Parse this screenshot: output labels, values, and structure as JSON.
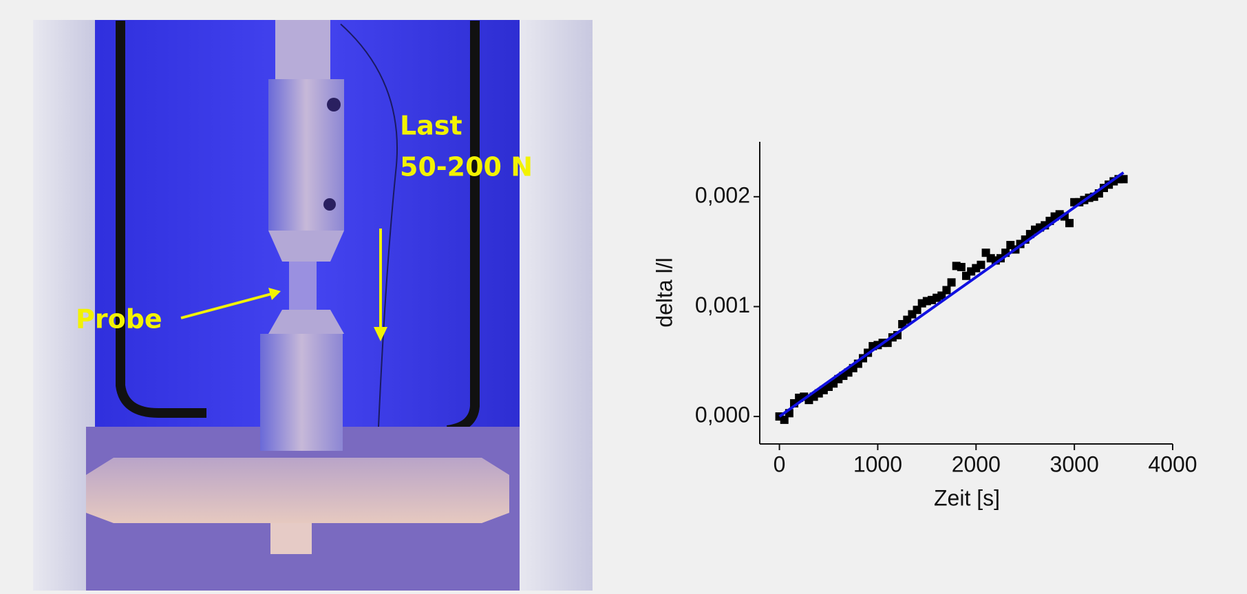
{
  "photo": {
    "labels": [
      "Last",
      "50-200 N",
      "Probe"
    ]
  },
  "chart_data": {
    "type": "scatter",
    "xlabel": "Zeit [s]",
    "ylabel": "delta l/l",
    "xlim": [
      -200,
      4000
    ],
    "xticks": [
      0,
      1000,
      2000,
      3000,
      4000
    ],
    "ylim": [
      -0.00025,
      0.0025
    ],
    "yticks": [
      {
        "value": 0,
        "label": "0,000"
      },
      {
        "value": 0.001,
        "label": "0,001"
      },
      {
        "value": 0.002,
        "label": "0,002"
      }
    ],
    "series": [
      {
        "type": "scatter",
        "color": "#000000",
        "x": [
          0,
          50,
          100,
          150,
          200,
          250,
          300,
          350,
          400,
          450,
          500,
          550,
          600,
          650,
          700,
          750,
          800,
          850,
          900,
          950,
          1000,
          1050,
          1100,
          1150,
          1200,
          1250,
          1300,
          1350,
          1400,
          1450,
          1500,
          1550,
          1600,
          1650,
          1700,
          1750,
          1800,
          1850,
          1900,
          1950,
          2000,
          2050,
          2100,
          2150,
          2200,
          2250,
          2300,
          2350,
          2400,
          2450,
          2500,
          2550,
          2600,
          2650,
          2700,
          2750,
          2800,
          2850,
          2900,
          2950,
          3000,
          3050,
          3100,
          3150,
          3200,
          3250,
          3300,
          3350,
          3400,
          3450,
          3500
        ],
        "values": [
          0,
          -3e-05,
          3e-05,
          0.00012,
          0.00017,
          0.00018,
          0.00015,
          0.00018,
          0.00021,
          0.00024,
          0.00027,
          0.0003,
          0.00034,
          0.00037,
          0.0004,
          0.00044,
          0.00048,
          0.00053,
          0.00058,
          0.00064,
          0.00065,
          0.00067,
          0.00067,
          0.00072,
          0.00074,
          0.00084,
          0.00088,
          0.00093,
          0.00097,
          0.00103,
          0.00105,
          0.00106,
          0.00108,
          0.0011,
          0.00115,
          0.00122,
          0.00137,
          0.00136,
          0.00128,
          0.00132,
          0.00135,
          0.00138,
          0.00149,
          0.00144,
          0.00142,
          0.00144,
          0.00149,
          0.00156,
          0.00152,
          0.00157,
          0.00161,
          0.00166,
          0.0017,
          0.00172,
          0.00174,
          0.00178,
          0.00182,
          0.00184,
          0.00182,
          0.00176,
          0.00195,
          0.00195,
          0.00197,
          0.00199,
          0.002,
          0.00203,
          0.00208,
          0.00211,
          0.00214,
          0.00216,
          0.00216
        ]
      },
      {
        "type": "line",
        "color": "#1010e0",
        "x": [
          0,
          3500
        ],
        "values": [
          0,
          0.00222
        ]
      }
    ]
  }
}
